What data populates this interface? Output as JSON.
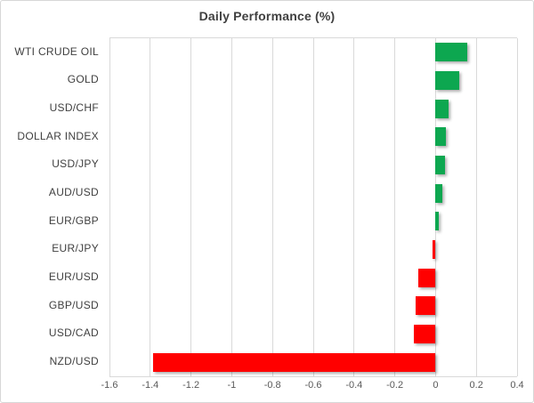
{
  "chart_data": {
    "type": "bar",
    "orientation": "horizontal",
    "title": "Daily Performance (%)",
    "categories": [
      "WTI CRUDE OIL",
      "GOLD",
      "USD/CHF",
      "DOLLAR INDEX",
      "USD/JPY",
      "AUD/USD",
      "EUR/GBP",
      "EUR/JPY",
      "EUR/USD",
      "GBP/USD",
      "USD/CAD",
      "NZD/USD"
    ],
    "values": [
      0.155,
      0.115,
      0.065,
      0.05,
      0.045,
      0.035,
      0.015,
      -0.015,
      -0.085,
      -0.1,
      -0.105,
      -1.385
    ],
    "xlim": [
      -1.6,
      0.4
    ],
    "x_tick_labels": [
      "-1.6",
      "-1.4",
      "-1.2",
      "-1",
      "-0.8",
      "-0.6",
      "-0.4",
      "-0.2",
      "0",
      "0.2",
      "0.4"
    ],
    "x_tick_values": [
      -1.6,
      -1.4,
      -1.2,
      -1,
      -0.8,
      -0.6,
      -0.4,
      -0.2,
      0,
      0.2,
      0.4
    ],
    "grid": true,
    "legend": "none",
    "colors": {
      "positive_bar": "#0da750",
      "negative_bar": "#ff0000",
      "gridline": "#d9d9d9",
      "title_text": "#404040",
      "category_text": "#404040",
      "tick_text": "#595959"
    }
  }
}
